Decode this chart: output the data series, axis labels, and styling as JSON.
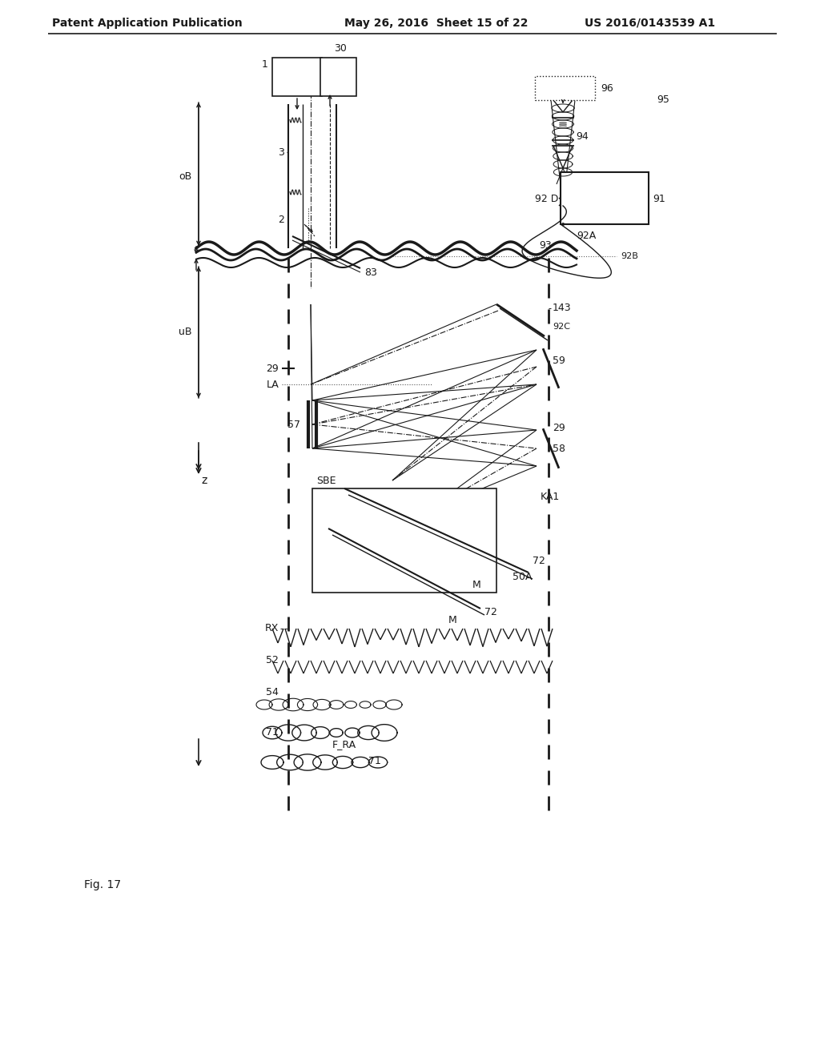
{
  "header_left": "Patent Application Publication",
  "header_middle": "May 26, 2016  Sheet 15 of 22",
  "header_right": "US 2016/0143539 A1",
  "figure_label": "Fig. 17",
  "background_color": "#ffffff",
  "line_color": "#1a1a1a"
}
